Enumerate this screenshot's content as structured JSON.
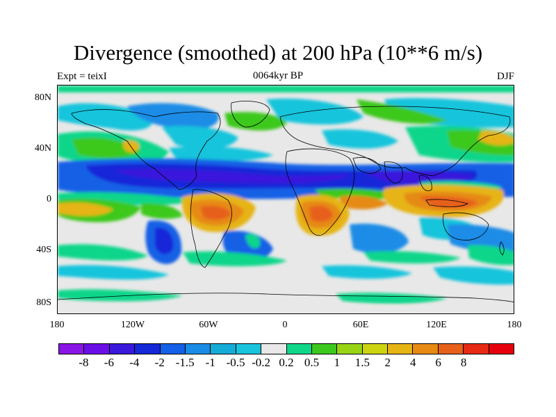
{
  "title": "Divergence (smoothed) at 200 hPa (10**6 m/s)",
  "subtitle_left": "Expt = teixI",
  "subtitle_center": "0064kyr BP",
  "subtitle_right": "DJF",
  "y_axis_labels": [
    "80N",
    "40N",
    "0",
    "40S",
    "80S"
  ],
  "x_axis_labels": [
    "180",
    "120W",
    "60W",
    "0",
    "60E",
    "120E",
    "180"
  ],
  "legend": {
    "colors": [
      "#8a16e6",
      "#6a10e6",
      "#3a18dc",
      "#1428d8",
      "#1460e6",
      "#1a8ce6",
      "#14acd6",
      "#18c4dc",
      "#e8e8e8",
      "#10d68a",
      "#3cc81e",
      "#98d414",
      "#ccd410",
      "#e6b414",
      "#e68a14",
      "#e6601a",
      "#e62a14",
      "#e6000e"
    ],
    "labels": [
      "-8",
      "-6",
      "-4",
      "-2",
      "-1.5",
      "-1",
      "-0.5",
      "-0.2",
      "0.2",
      "0.5",
      "1",
      "1.5",
      "2",
      "4",
      "6",
      "8"
    ]
  }
}
